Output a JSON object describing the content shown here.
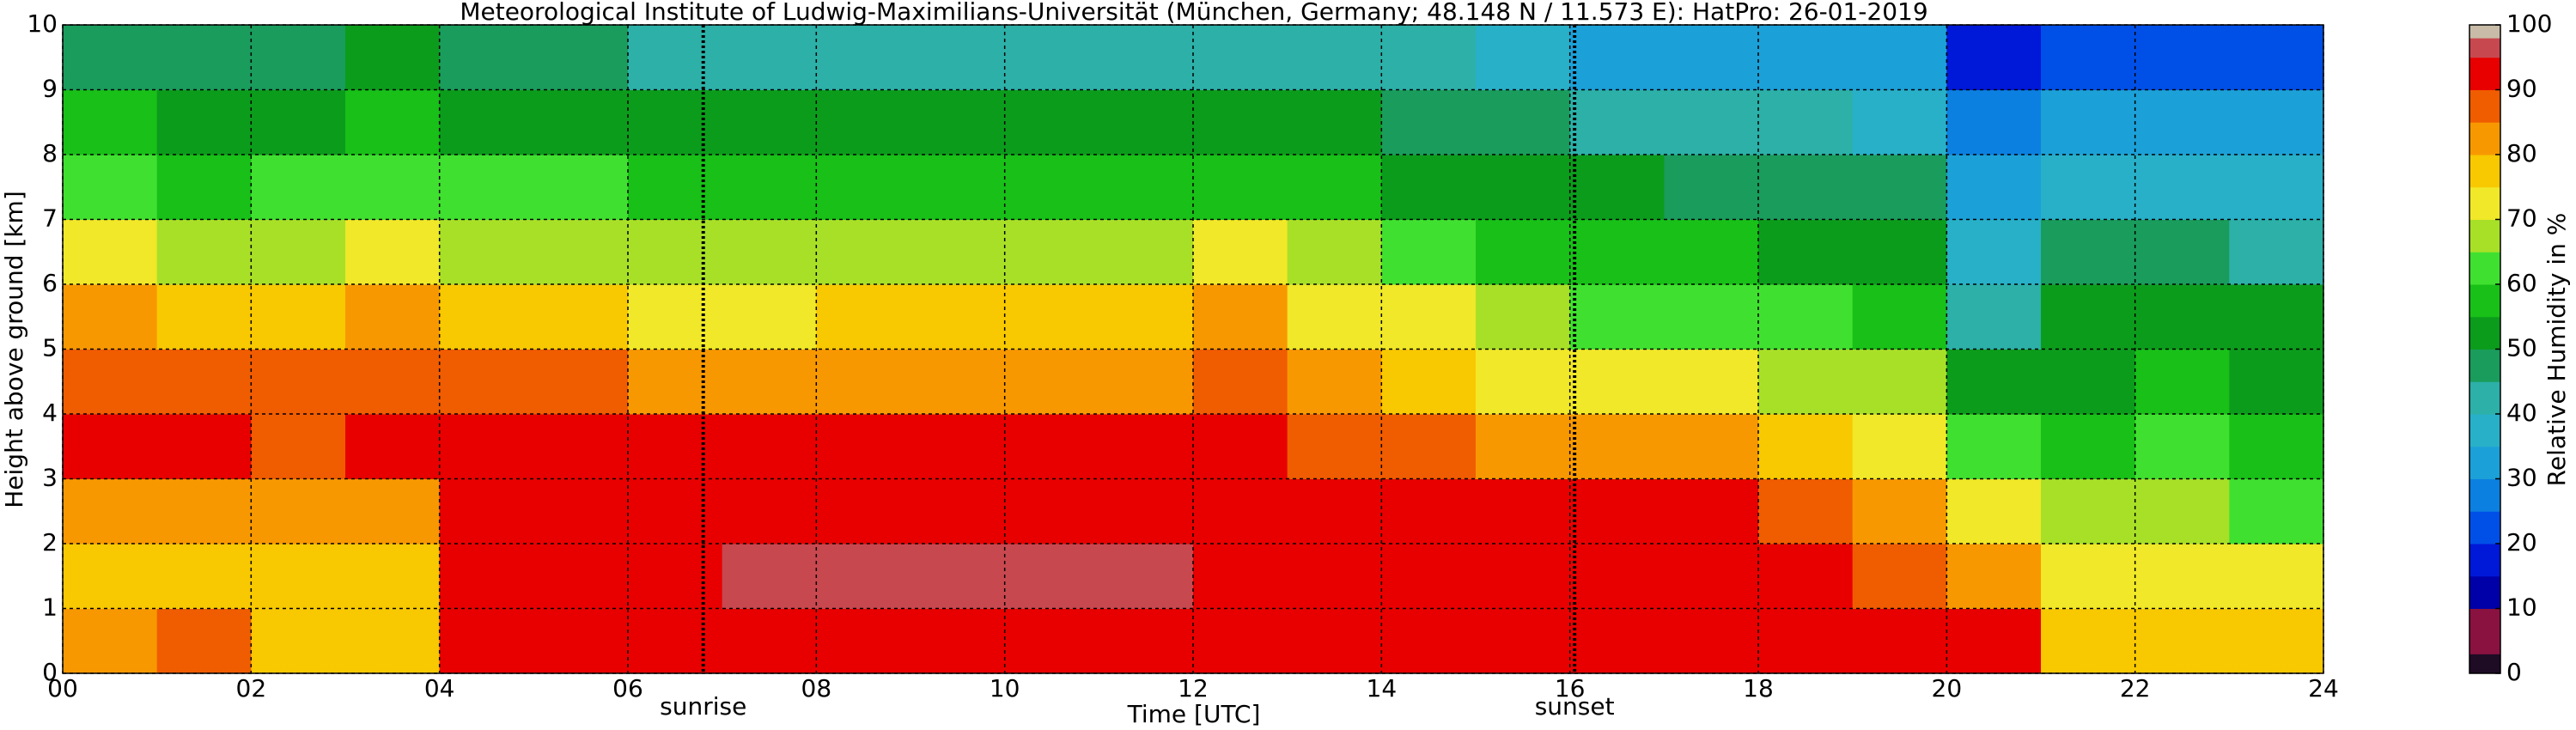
{
  "chart_data": {
    "type": "heatmap",
    "title": "Meteorological Institute of Ludwig-Maximilians-Universität (München, Germany; 48.148 N / 11.573 E):    HatPro: 26-01-2019",
    "x_label": "Time [UTC]",
    "y_label": "Height above ground [km]",
    "colorbar_label": "Relative Humidity in %",
    "xbins": [
      0,
      1,
      2,
      3,
      4,
      5,
      6,
      7,
      8,
      9,
      10,
      11,
      12,
      13,
      14,
      15,
      16,
      17,
      18,
      19,
      20,
      21,
      22,
      23,
      24
    ],
    "ybins": [
      0,
      1,
      2,
      3,
      4,
      5,
      6,
      7,
      8,
      9,
      10
    ],
    "z": [
      [
        80,
        85,
        76,
        76,
        90,
        92,
        93,
        92,
        92,
        92,
        92,
        92,
        92,
        92,
        92,
        92,
        91,
        91,
        91,
        90,
        91,
        78,
        76,
        78
      ],
      [
        75,
        76,
        75,
        76,
        90,
        91,
        92,
        97,
        97,
        97,
        97,
        96,
        93,
        93,
        93,
        94,
        92,
        91,
        91,
        88,
        82,
        74,
        72,
        70
      ],
      [
        80,
        83,
        80,
        82,
        91,
        92,
        92,
        92,
        93,
        93,
        93,
        93,
        92,
        92,
        91,
        91,
        90,
        90,
        88,
        82,
        70,
        68,
        66,
        62
      ],
      [
        90,
        90,
        88,
        90,
        90,
        91,
        90,
        90,
        90,
        90,
        90,
        90,
        90,
        89,
        86,
        84,
        80,
        80,
        76,
        72,
        60,
        58,
        60,
        58
      ],
      [
        88,
        85,
        85,
        88,
        85,
        86,
        82,
        82,
        83,
        83,
        83,
        82,
        86,
        82,
        78,
        74,
        70,
        70,
        68,
        65,
        50,
        54,
        56,
        54
      ],
      [
        80,
        77,
        78,
        82,
        78,
        78,
        74,
        74,
        76,
        76,
        76,
        76,
        80,
        74,
        70,
        66,
        62,
        62,
        60,
        58,
        40,
        50,
        52,
        50
      ],
      [
        70,
        65,
        68,
        72,
        68,
        68,
        65,
        66,
        66,
        66,
        66,
        65,
        70,
        65,
        62,
        58,
        55,
        55,
        54,
        52,
        35,
        45,
        46,
        44
      ],
      [
        62,
        58,
        60,
        62,
        60,
        60,
        57,
        56,
        56,
        56,
        56,
        56,
        58,
        56,
        54,
        52,
        50,
        48,
        48,
        45,
        30,
        38,
        38,
        36
      ],
      [
        55,
        52,
        53,
        55,
        53,
        54,
        50,
        50,
        50,
        50,
        50,
        50,
        52,
        50,
        48,
        45,
        44,
        42,
        40,
        38,
        25,
        30,
        30,
        30
      ],
      [
        48,
        46,
        48,
        50,
        47,
        47,
        42,
        42,
        42,
        42,
        42,
        42,
        44,
        42,
        40,
        36,
        33,
        33,
        33,
        30,
        15,
        20,
        22,
        24
      ]
    ],
    "color_bounds": [
      0,
      3,
      10,
      15,
      20,
      25,
      30,
      35,
      40,
      45,
      50,
      55,
      60,
      65,
      70,
      75,
      80,
      85,
      90,
      95,
      98,
      100
    ],
    "colors": [
      "#1e0b24",
      "#8a1240",
      "#0000a8",
      "#0018d8",
      "#0050e8",
      "#0c80e0",
      "#1ca0d8",
      "#28b0c8",
      "#2cb0a8",
      "#1a9c5c",
      "#0c9c1c",
      "#18c018",
      "#40e030",
      "#a8e028",
      "#f0e828",
      "#f8c800",
      "#f89800",
      "#f05c00",
      "#e80000",
      "#c84850",
      "#c8bca8"
    ],
    "xlim": [
      0,
      24
    ],
    "ylim": [
      0,
      10
    ],
    "clim": [
      0,
      100
    ],
    "xticks": [
      {
        "value": 0,
        "label": "00"
      },
      {
        "value": 2,
        "label": "02"
      },
      {
        "value": 4,
        "label": "04"
      },
      {
        "value": 6,
        "label": "06"
      },
      {
        "value": 8,
        "label": "08"
      },
      {
        "value": 10,
        "label": "10"
      },
      {
        "value": 12,
        "label": "12"
      },
      {
        "value": 14,
        "label": "14"
      },
      {
        "value": 16,
        "label": "16"
      },
      {
        "value": 18,
        "label": "18"
      },
      {
        "value": 20,
        "label": "20"
      },
      {
        "value": 22,
        "label": "22"
      },
      {
        "value": 24,
        "label": "24"
      }
    ],
    "yticks": [
      0,
      1,
      2,
      3,
      4,
      5,
      6,
      7,
      8,
      9,
      10
    ],
    "cticks": [
      0,
      10,
      20,
      30,
      40,
      50,
      60,
      70,
      80,
      90,
      100
    ],
    "grid": true,
    "annotations": [
      {
        "x": 6.8,
        "label": "sunrise"
      },
      {
        "x": 16.05,
        "label": "sunset"
      }
    ]
  }
}
